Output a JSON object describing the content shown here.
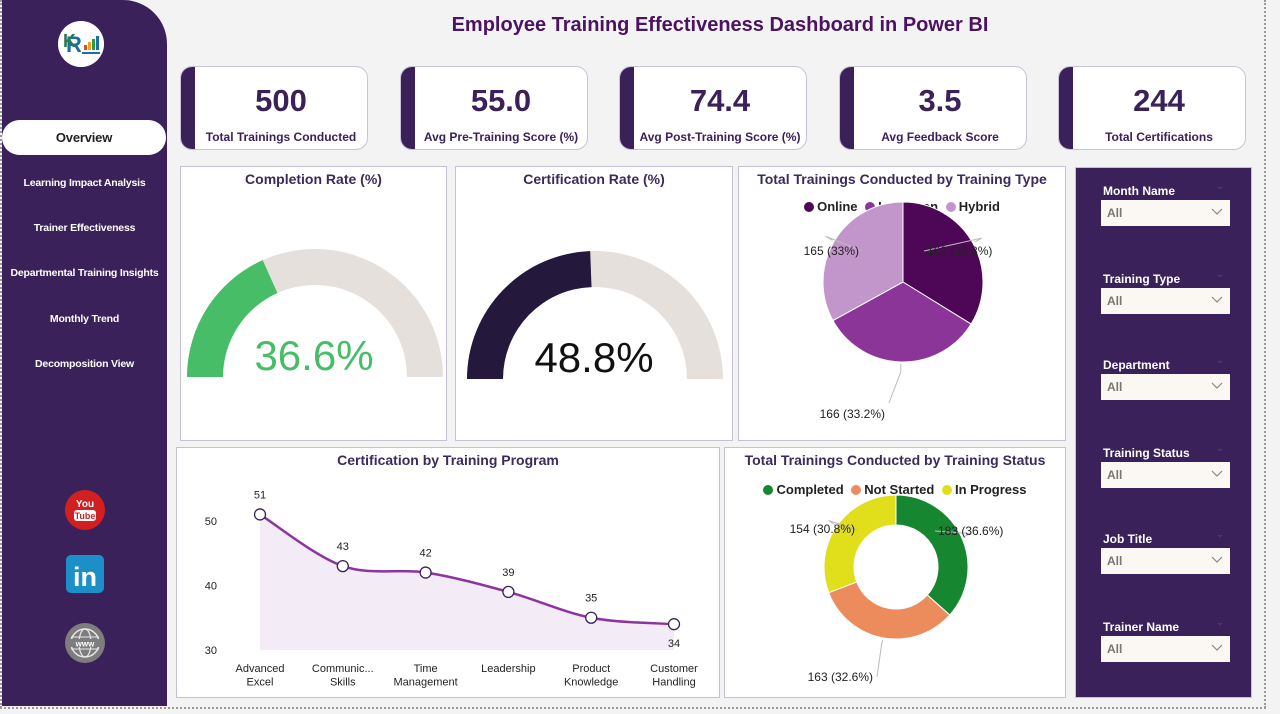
{
  "header": {
    "title": "Employee Training Effectiveness Dashboard in Power BI"
  },
  "sidebar": {
    "logo": "company-logo",
    "items": [
      {
        "label": "Overview",
        "active": true
      },
      {
        "label": "Learning Impact Analysis",
        "active": false
      },
      {
        "label": "Trainer Effectiveness",
        "active": false
      },
      {
        "label": "Departmental Training Insights",
        "active": false
      },
      {
        "label": "Monthly Trend",
        "active": false
      },
      {
        "label": "Decomposition View",
        "active": false
      }
    ],
    "social": [
      {
        "name": "youtube-icon",
        "text_top": "You",
        "text_bottom": "Tube"
      },
      {
        "name": "linkedin-icon",
        "text": "in"
      },
      {
        "name": "website-icon",
        "text": "www"
      }
    ]
  },
  "kpis": [
    {
      "value": "500",
      "label": "Total Trainings Conducted"
    },
    {
      "value": "55.0",
      "label": "Avg Pre-Training Score (%)"
    },
    {
      "value": "74.4",
      "label": "Avg Post-Training Score (%)"
    },
    {
      "value": "3.5",
      "label": "Avg Feedback Score"
    },
    {
      "value": "244",
      "label": "Total Certifications"
    }
  ],
  "gauges": [
    {
      "title": "Completion Rate (%)",
      "value": 36.6,
      "display": "36.6%",
      "max": 100,
      "fill_color": "#46bd66",
      "text_color": "#46bd66",
      "track_color": "#e5e0db"
    },
    {
      "title": "Certification Rate (%)",
      "value": 48.8,
      "display": "48.8%",
      "max": 100,
      "fill_color": "#24193d",
      "text_color": "#111111",
      "track_color": "#e5e0db"
    }
  ],
  "slicers": [
    {
      "label": "Month Name",
      "value": "All"
    },
    {
      "label": "Training Type",
      "value": "All"
    },
    {
      "label": "Department",
      "value": "All"
    },
    {
      "label": "Training Status",
      "value": "All"
    },
    {
      "label": "Job Title",
      "value": "All"
    },
    {
      "label": "Trainer Name",
      "value": "All"
    }
  ],
  "chart_data": [
    {
      "type": "pie",
      "title": "Total Trainings Conducted by Training Type",
      "legend_position": "top-center",
      "categories": [
        "Online",
        "In-Person",
        "Hybrid"
      ],
      "values": [
        169,
        166,
        165
      ],
      "labels": [
        "169 (33.8%)",
        "166 (33.2%)",
        "165 (33%)"
      ],
      "colors": [
        "#4e0757",
        "#8a3597",
        "#c396cb"
      ]
    },
    {
      "type": "pie",
      "subtype": "donut",
      "title": "Total Trainings Conducted by Training Status",
      "legend_position": "top-center",
      "categories": [
        "Completed",
        "Not Started",
        "In Progress"
      ],
      "values": [
        183,
        163,
        154
      ],
      "labels": [
        "183 (36.6%)",
        "163 (32.6%)",
        "154 (30.8%)"
      ],
      "colors": [
        "#168630",
        "#ec8c5c",
        "#e1de1c"
      ]
    },
    {
      "type": "area",
      "title": "Certification by Training Program",
      "categories": [
        "Advanced Excel",
        "Communic... Skills",
        "Time Management",
        "Leadership",
        "Product Knowledge",
        "Customer Handling"
      ],
      "category_lines": [
        [
          "Advanced",
          "Excel"
        ],
        [
          "Communic...",
          "Skills"
        ],
        [
          "Time",
          "Management"
        ],
        [
          "Leadership"
        ],
        [
          "Product",
          "Knowledge"
        ],
        [
          "Customer",
          "Handling"
        ]
      ],
      "values": [
        51,
        43,
        42,
        39,
        35,
        34
      ],
      "ylim": [
        30,
        52
      ],
      "yticks": [
        30,
        40,
        50
      ],
      "xlabel": "",
      "ylabel": "",
      "grid": false,
      "line_color": "#8c34a0",
      "fill_color": "#f3ebf5"
    }
  ]
}
